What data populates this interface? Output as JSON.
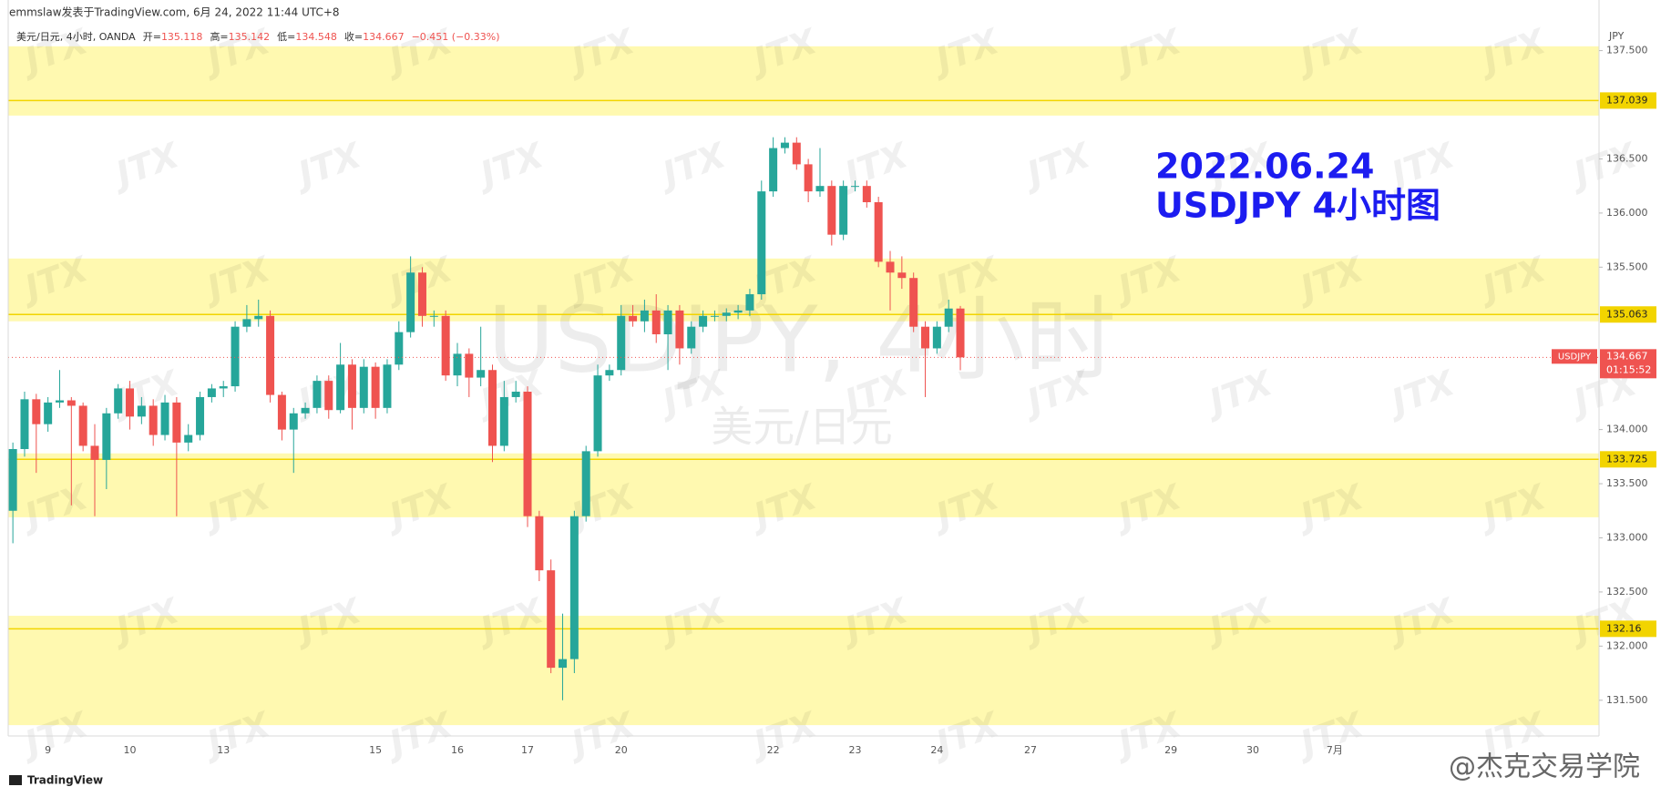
{
  "chart_data": {
    "type": "candlestick",
    "header": "emmslaw发表于TradingView.com, 6月 24, 2022 11:44 UTC+8",
    "legend": {
      "symbol": "美元/日元, 4小时, OANDA",
      "open_label": "开=",
      "high_label": "高=",
      "low_label": "低=",
      "close_label": "收=",
      "change": "−0.451 (−0.33%)"
    },
    "annotation": [
      "2022.06.24",
      "USDJPY 4小时图"
    ],
    "watermark": [
      "USDJPY, 4小时",
      "美元/日元"
    ],
    "watermark_logo": "JTX",
    "credit": "@杰克交易学院",
    "brand": "TradingView",
    "symbol_tag": "USDJPY",
    "countdown": "01:15:52",
    "y_unit": "JPY",
    "categories": [
      null,
      null,
      null,
      "9",
      null,
      null,
      null,
      null,
      null,
      null,
      "10",
      null,
      null,
      null,
      null,
      null,
      null,
      null,
      "13",
      null,
      null,
      null,
      null,
      null,
      null,
      null,
      null,
      null,
      null,
      null,
      null,
      "15",
      null,
      null,
      null,
      null,
      null,
      null,
      "16",
      null,
      null,
      null,
      null,
      null,
      "17",
      null,
      null,
      null,
      null,
      null,
      null,
      null,
      "20",
      null,
      null,
      null,
      null,
      null,
      null,
      null,
      null,
      null,
      null,
      null,
      null,
      "22",
      null,
      null,
      null,
      null,
      null,
      null,
      "23",
      null,
      null,
      null,
      null,
      null,
      null,
      "24",
      null,
      null,
      null,
      null,
      null,
      null,
      null,
      "27",
      null,
      null,
      null,
      null,
      null,
      null,
      null,
      null,
      null,
      null,
      null,
      "29",
      null,
      null,
      null,
      null,
      null,
      null,
      "30",
      null,
      null,
      null,
      null,
      null,
      null,
      "7月",
      null,
      null,
      null,
      null,
      null,
      null,
      null,
      null,
      null,
      null,
      null,
      null,
      null,
      null,
      null,
      null,
      null,
      null,
      null,
      null,
      null,
      null
    ],
    "open": [
      133.25,
      133.82,
      134.28,
      134.05,
      134.25,
      134.27,
      134.22,
      133.85,
      133.72,
      134.15,
      134.38,
      134.12,
      134.22,
      133.95,
      134.25,
      133.88,
      133.95,
      134.3,
      134.38,
      134.4,
      134.95,
      135.02,
      135.05,
      134.32,
      134.0,
      134.15,
      134.2,
      134.45,
      134.18,
      134.6,
      134.2,
      134.58,
      134.2,
      134.6,
      134.9,
      135.45,
      135.05,
      135.05,
      134.5,
      134.7,
      134.48,
      134.55,
      133.85,
      134.3,
      134.35,
      133.2,
      132.7,
      131.8,
      131.88,
      133.2,
      133.8,
      134.5,
      134.55,
      135.05,
      135.0,
      135.1,
      134.88,
      135.1,
      134.75,
      134.95,
      135.05,
      135.05,
      135.08,
      135.1,
      135.25,
      136.2,
      136.6,
      136.65,
      136.45,
      136.2,
      136.25,
      135.8,
      136.25,
      136.25,
      136.1,
      135.55,
      135.45,
      135.4,
      134.95,
      134.75,
      134.95,
      135.118,
      null,
      null,
      null,
      null,
      null,
      null,
      null,
      null,
      null,
      null,
      null,
      null,
      null,
      null,
      null,
      null,
      null,
      null,
      null,
      null,
      null,
      null,
      null,
      null,
      null,
      null,
      null,
      null,
      null,
      null,
      null,
      null,
      null,
      null,
      null,
      null,
      null,
      null,
      null,
      null,
      null,
      null,
      null,
      null,
      null,
      null,
      null,
      null,
      null,
      null,
      null,
      null,
      null,
      null
    ],
    "high": [
      133.88,
      134.35,
      134.33,
      134.3,
      134.55,
      134.3,
      134.25,
      134.05,
      134.2,
      134.42,
      134.45,
      134.3,
      134.28,
      134.32,
      134.3,
      134.05,
      134.35,
      134.42,
      134.45,
      135.0,
      135.15,
      135.2,
      135.1,
      134.35,
      134.2,
      134.25,
      134.5,
      134.5,
      134.8,
      134.65,
      134.65,
      134.62,
      134.65,
      135.0,
      135.6,
      135.5,
      135.1,
      135.1,
      134.8,
      134.75,
      134.95,
      134.6,
      134.45,
      134.45,
      134.4,
      133.25,
      132.8,
      132.3,
      133.25,
      133.85,
      134.6,
      134.6,
      135.15,
      135.15,
      135.2,
      135.25,
      135.15,
      135.15,
      135.0,
      135.1,
      135.1,
      135.12,
      135.15,
      135.3,
      136.3,
      136.7,
      136.7,
      136.7,
      136.5,
      136.6,
      136.3,
      136.3,
      136.3,
      136.3,
      136.15,
      135.65,
      135.6,
      135.45,
      135.0,
      135.0,
      135.2,
      135.142,
      null,
      null,
      null,
      null,
      null,
      null,
      null,
      null,
      null,
      null,
      null,
      null,
      null,
      null,
      null,
      null,
      null,
      null,
      null,
      null,
      null,
      null,
      null,
      null,
      null,
      null,
      null,
      null,
      null,
      null,
      null,
      null,
      null,
      null,
      null,
      null,
      null,
      null,
      null,
      null,
      null,
      null,
      null,
      null,
      null,
      null,
      null,
      null,
      null,
      null,
      null,
      null,
      null,
      null
    ],
    "low": [
      132.95,
      133.75,
      133.6,
      133.98,
      134.2,
      133.3,
      133.8,
      133.2,
      133.45,
      134.1,
      134.0,
      134.05,
      133.85,
      133.9,
      133.2,
      133.8,
      133.9,
      134.25,
      134.3,
      134.35,
      134.9,
      134.95,
      134.25,
      133.9,
      133.6,
      134.1,
      134.15,
      134.1,
      134.15,
      134.0,
      134.15,
      134.1,
      134.15,
      134.55,
      134.85,
      134.95,
      134.95,
      134.45,
      134.4,
      134.3,
      134.4,
      133.7,
      133.8,
      134.25,
      133.1,
      132.6,
      131.75,
      131.5,
      131.75,
      133.15,
      133.75,
      134.45,
      134.5,
      134.95,
      134.9,
      134.8,
      134.55,
      134.6,
      134.7,
      134.9,
      135.0,
      135.0,
      135.02,
      135.05,
      135.2,
      136.15,
      136.55,
      136.4,
      136.1,
      136.15,
      135.7,
      135.75,
      136.2,
      136.05,
      135.5,
      135.1,
      135.3,
      134.9,
      134.3,
      134.7,
      134.9,
      134.548,
      null,
      null,
      null,
      null,
      null,
      null,
      null,
      null,
      null,
      null,
      null,
      null,
      null,
      null,
      null,
      null,
      null,
      null,
      null,
      null,
      null,
      null,
      null,
      null,
      null,
      null,
      null,
      null,
      null,
      null,
      null,
      null,
      null,
      null,
      null,
      null,
      null,
      null,
      null,
      null,
      null,
      null,
      null,
      null,
      null,
      null,
      null,
      null,
      null,
      null,
      null,
      null,
      null,
      null
    ],
    "close": [
      133.82,
      134.28,
      134.05,
      134.25,
      134.27,
      134.22,
      133.85,
      133.72,
      134.15,
      134.38,
      134.12,
      134.22,
      133.95,
      134.25,
      133.88,
      133.95,
      134.3,
      134.38,
      134.4,
      134.95,
      135.02,
      135.05,
      134.32,
      134.0,
      134.15,
      134.2,
      134.45,
      134.18,
      134.6,
      134.2,
      134.58,
      134.2,
      134.6,
      134.9,
      135.45,
      135.05,
      135.05,
      134.5,
      134.7,
      134.48,
      134.55,
      133.85,
      134.3,
      134.35,
      133.2,
      132.7,
      131.8,
      131.88,
      133.2,
      133.8,
      134.5,
      134.55,
      135.05,
      135.0,
      135.1,
      134.88,
      135.1,
      134.75,
      134.95,
      135.05,
      135.05,
      135.08,
      135.1,
      135.25,
      136.2,
      136.6,
      136.65,
      136.45,
      136.2,
      136.25,
      135.8,
      136.25,
      136.25,
      136.1,
      135.55,
      135.45,
      135.4,
      134.95,
      134.75,
      134.95,
      135.118,
      134.667,
      null,
      null,
      null,
      null,
      null,
      null,
      null,
      null,
      null,
      null,
      null,
      null,
      null,
      null,
      null,
      null,
      null,
      null,
      null,
      null,
      null,
      null,
      null,
      null,
      null,
      null,
      null,
      null,
      null,
      null,
      null,
      null,
      null,
      null,
      null,
      null,
      null,
      null,
      null,
      null,
      null,
      null,
      null,
      null,
      null,
      null,
      null,
      null,
      null,
      null,
      null,
      null,
      null,
      null
    ],
    "up_color": "#26a69a",
    "down_color": "#ef5350",
    "zones": [
      [
        136.9,
        137.54
      ],
      [
        135.0,
        135.58
      ],
      [
        133.19,
        133.78
      ],
      [
        131.27,
        132.28
      ]
    ],
    "zone_color": "#fff9b0",
    "levels": [
      137.039,
      135.063,
      133.725,
      132.16
    ],
    "level_color": "#f2d400",
    "ylim": [
      131.17,
      137.69
    ],
    "yticks": [
      {
        "value": 131.5,
        "label": "131.500"
      },
      {
        "value": 132,
        "label": "132.000"
      },
      {
        "value": 132.5,
        "label": "132.500"
      },
      {
        "value": 133,
        "label": "133.000"
      },
      {
        "value": 133.5,
        "label": "133.500"
      },
      {
        "value": 134,
        "label": "134.000"
      },
      {
        "value": 135.5,
        "label": "135.500"
      },
      {
        "value": 136,
        "label": "136.000"
      },
      {
        "value": 136.5,
        "label": "136.500"
      },
      {
        "value": 137.5,
        "label": "137.500"
      }
    ]
  }
}
